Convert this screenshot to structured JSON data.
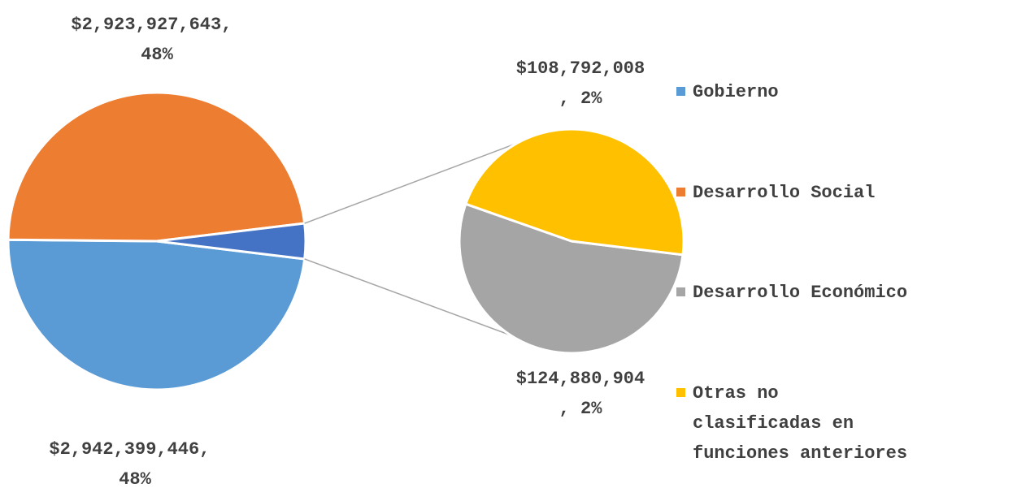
{
  "chart_data": {
    "type": "pie-of-pie",
    "categories": [
      "Gobierno",
      "Desarrollo Social",
      "Desarrollo Económico",
      "Otras no clasificadas en funciones anteriores"
    ],
    "values": [
      2942399446,
      2923927643,
      124880904,
      108792008
    ],
    "value_labels": [
      "$2,942,399,446, 48%",
      "$2,923,927,643, 48%",
      "$124,880,904, 2%",
      "$108,792,008, 2%"
    ],
    "colors": [
      "#5b9bd5",
      "#ed7d31",
      "#a5a5a5",
      "#ffc000"
    ],
    "legend": "right"
  }
}
